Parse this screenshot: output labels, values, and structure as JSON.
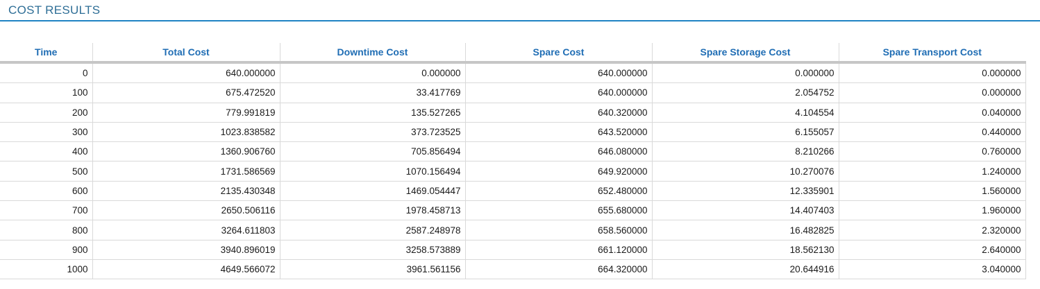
{
  "page": {
    "title": "COST RESULTS"
  },
  "colors": {
    "title_text": "#2e6e96",
    "title_rule": "#1f83c3",
    "header_text": "#1f6db4",
    "header_bar": "#c6c6c6",
    "grid_line": "#d9d9d9",
    "cell_text": "#1a1a1a",
    "background": "#ffffff"
  },
  "table": {
    "columns": [
      "Time",
      "Total Cost",
      "Downtime Cost",
      "Spare Cost",
      "Spare Storage Cost",
      "Spare Transport Cost"
    ],
    "rows": [
      [
        "0",
        "640.000000",
        "0.000000",
        "640.000000",
        "0.000000",
        "0.000000"
      ],
      [
        "100",
        "675.472520",
        "33.417769",
        "640.000000",
        "2.054752",
        "0.000000"
      ],
      [
        "200",
        "779.991819",
        "135.527265",
        "640.320000",
        "4.104554",
        "0.040000"
      ],
      [
        "300",
        "1023.838582",
        "373.723525",
        "643.520000",
        "6.155057",
        "0.440000"
      ],
      [
        "400",
        "1360.906760",
        "705.856494",
        "646.080000",
        "8.210266",
        "0.760000"
      ],
      [
        "500",
        "1731.586569",
        "1070.156494",
        "649.920000",
        "10.270076",
        "1.240000"
      ],
      [
        "600",
        "2135.430348",
        "1469.054447",
        "652.480000",
        "12.335901",
        "1.560000"
      ],
      [
        "700",
        "2650.506116",
        "1978.458713",
        "655.680000",
        "14.407403",
        "1.960000"
      ],
      [
        "800",
        "3264.611803",
        "2587.248978",
        "658.560000",
        "16.482825",
        "2.320000"
      ],
      [
        "900",
        "3940.896019",
        "3258.573889",
        "661.120000",
        "18.562130",
        "2.640000"
      ],
      [
        "1000",
        "4649.566072",
        "3961.561156",
        "664.320000",
        "20.644916",
        "3.040000"
      ]
    ]
  }
}
